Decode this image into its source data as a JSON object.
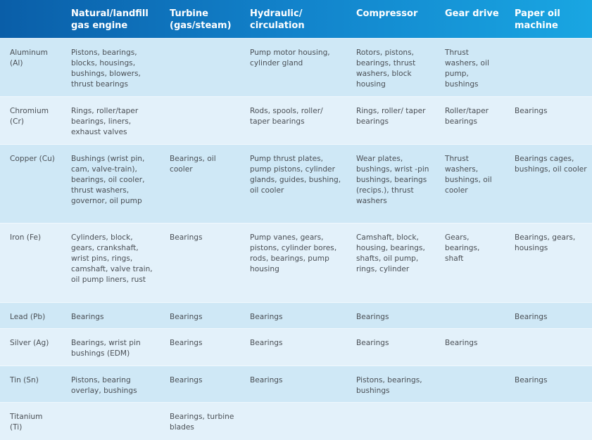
{
  "headers": [
    "",
    "Natural/landfill gas engine",
    "Turbine (gas/steam)",
    "Hydraulic/ circulation",
    "Compressor",
    "Gear drive",
    "Paper oil machine"
  ],
  "rows": [
    {
      "metal": "Aluminum (Al)",
      "cells": [
        "Pistons, bearings, blocks, housings, bushings, blowers, thrust bearings",
        "",
        "Pump motor housing, cylinder gland",
        "Rotors, pistons, bearings, thrust washers, block housing",
        "Thrust washers, oil pump, bushings",
        ""
      ]
    },
    {
      "metal": "Chromium (Cr)",
      "cells": [
        "Rings, roller/taper bearings, liners, exhaust valves",
        "",
        "Rods, spools, roller/ taper bearings",
        "Rings, roller/ taper bearings",
        "Roller/taper bearings",
        "Bearings"
      ]
    },
    {
      "metal": "Copper (Cu)",
      "cells": [
        "Bushings (wrist pin, cam, valve-train), bearings, oil cooler, thrust washers, governor, oil pump",
        "Bearings, oil cooler",
        "Pump thrust plates, pump pistons, cylinder glands, guides, bushing, oil cooler",
        "Wear plates, bushings, wrist -pin bushings, bearings (recips.), thrust washers",
        "Thrust washers, bushings, oil cooler",
        "Bearings cages, bushings, oil cooler"
      ]
    },
    {
      "metal": "Iron (Fe)",
      "cells": [
        "Cylinders, block, gears, crankshaft, wrist pins, rings, camshaft, valve train, oil pump liners, rust",
        "Bearings",
        "Pump vanes, gears, pistons, cylinder bores, rods, bearings, pump housing",
        "Camshaft, block, housing, bearings, shafts, oil pump, rings, cylinder",
        "Gears, bearings, shaft",
        "Bearings, gears, housings"
      ]
    },
    {
      "metal": "Lead (Pb)",
      "cells": [
        "Bearings",
        "Bearings",
        "Bearings",
        "Bearings",
        "",
        "Bearings"
      ]
    },
    {
      "metal": "Silver (Ag)",
      "cells": [
        "Bearings, wrist pin bushings (EDM)",
        "Bearings",
        "Bearings",
        "Bearings",
        "Bearings",
        ""
      ]
    },
    {
      "metal": "Tin (Sn)",
      "cells": [
        "Pistons, bearing overlay, bushings",
        "Bearings",
        "Bearings",
        "Pistons, bearings, bushings",
        "",
        "Bearings"
      ]
    },
    {
      "metal": "Titanium (Ti)",
      "cells": [
        "",
        "Bearings, turbine blades",
        "",
        "",
        "",
        ""
      ]
    }
  ],
  "colors": {
    "header_start": "#0a5ea8",
    "header_end": "#19a6e2",
    "row_dark": "#cfe8f6",
    "row_light": "#e3f1fa",
    "text": "#4a4f55"
  }
}
